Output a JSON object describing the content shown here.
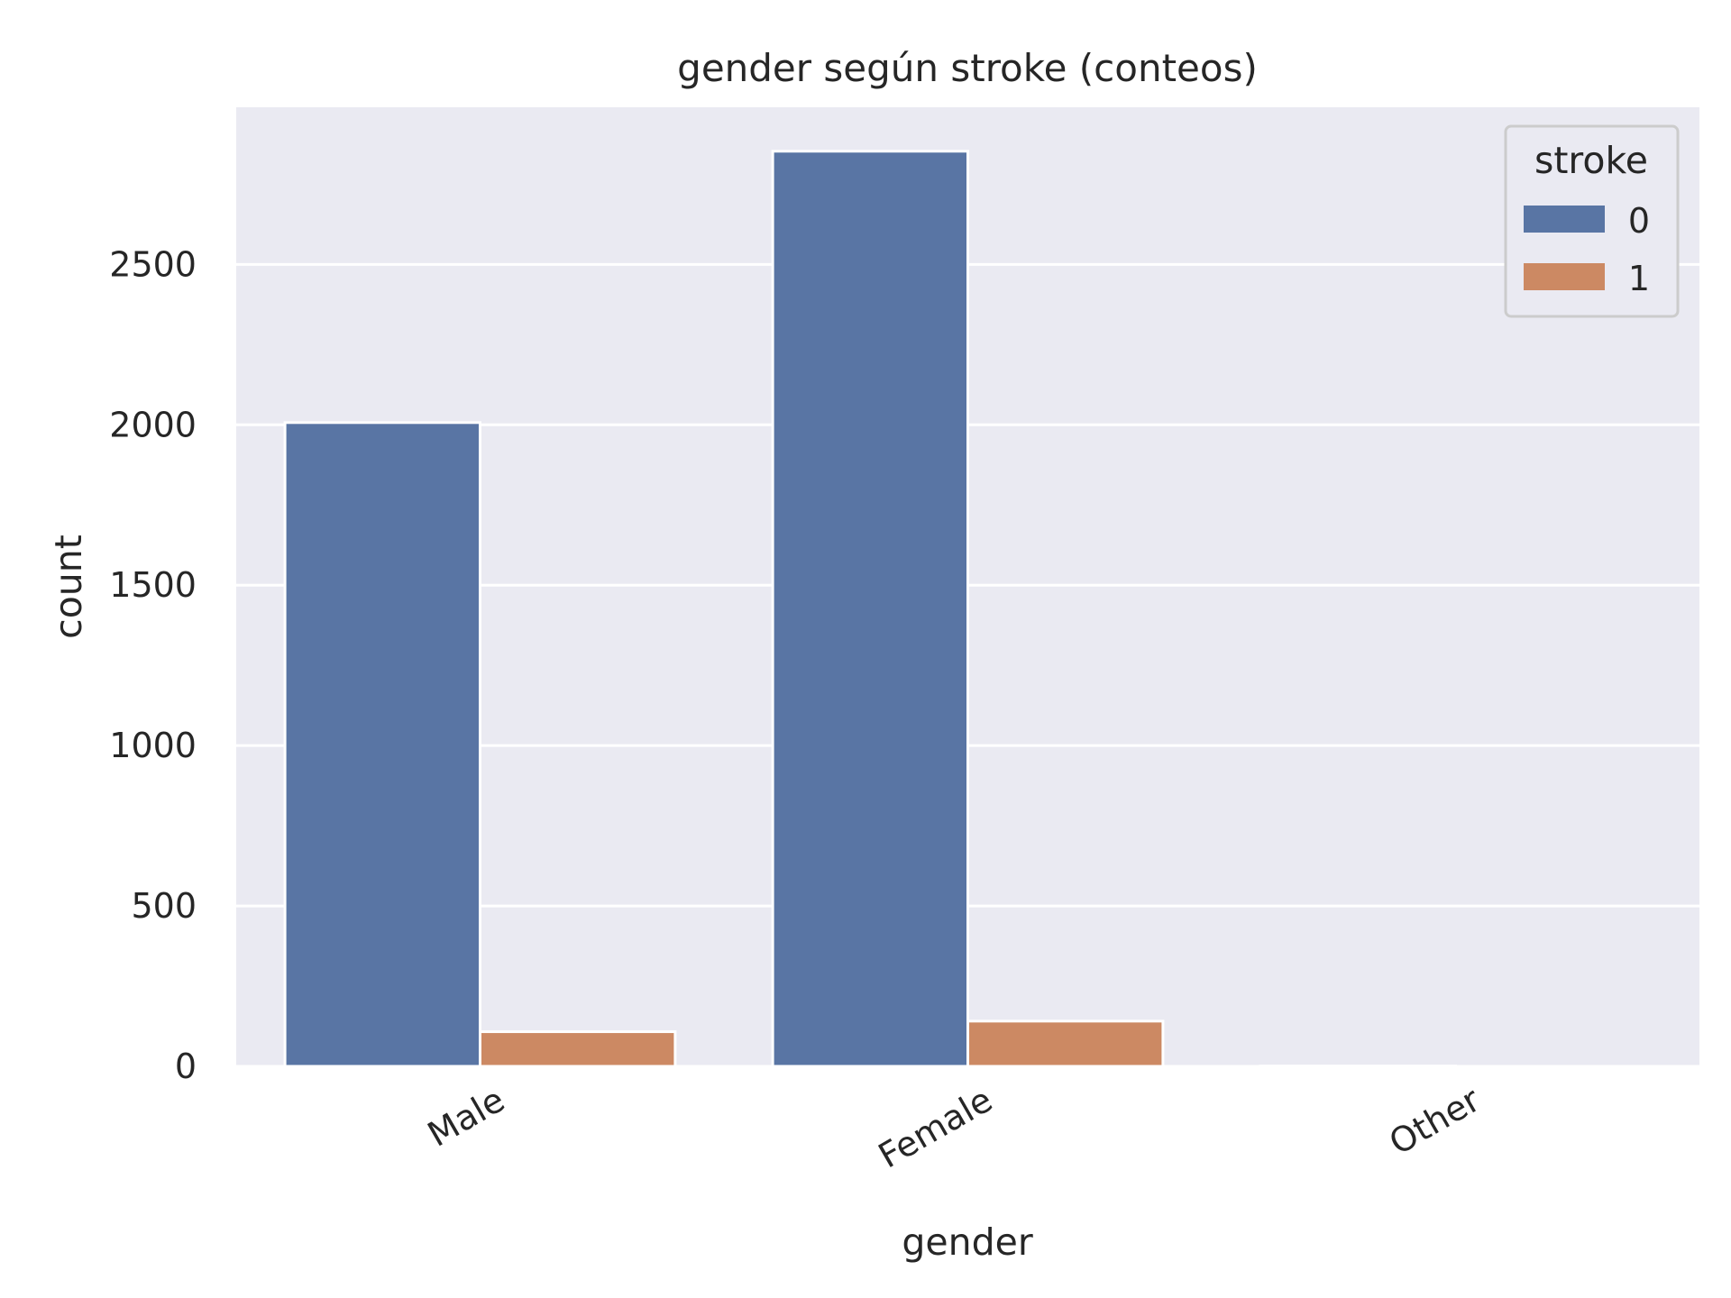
{
  "chart_data": {
    "type": "bar",
    "title": "gender según stroke (conteos)",
    "xlabel": "gender",
    "ylabel": "count",
    "categories": [
      "Male",
      "Female",
      "Other"
    ],
    "series": [
      {
        "name": "0",
        "values": [
          2007,
          2853,
          1
        ]
      },
      {
        "name": "1",
        "values": [
          108,
          141,
          0
        ]
      }
    ],
    "ylim": [
      0,
      2990
    ],
    "yticks": [
      0,
      500,
      1000,
      1500,
      2000,
      2500
    ],
    "grid": true,
    "legend": {
      "title": "stroke",
      "placement": "top-right"
    },
    "colors": {
      "series": [
        "#5975a4",
        "#cc8963"
      ],
      "plot_background": "#eaeaf2",
      "grid": "#ffffff",
      "text": "#262626"
    }
  }
}
